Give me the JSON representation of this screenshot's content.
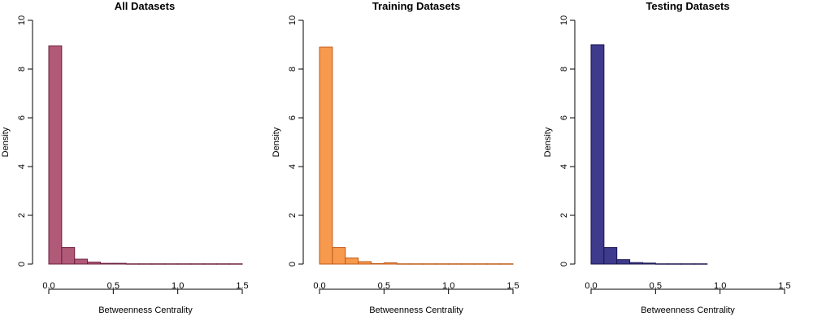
{
  "chart_data": [
    {
      "type": "bar",
      "title": "All Datasets",
      "xlabel": "Betweenness Centrality",
      "ylabel": "Density",
      "xlim": [
        0,
        1.5
      ],
      "ylim": [
        0,
        10
      ],
      "x_ticks": [
        "0.0",
        "0.5",
        "1.0",
        "1.5"
      ],
      "y_ticks": [
        "0",
        "2",
        "4",
        "6",
        "8",
        "10"
      ],
      "bin_width": 0.1,
      "bins_start": [
        0.0,
        0.1,
        0.2,
        0.3,
        0.4,
        0.5,
        0.6,
        0.7,
        0.8,
        0.9,
        1.0,
        1.1,
        1.2,
        1.3,
        1.4
      ],
      "values": [
        8.95,
        0.68,
        0.2,
        0.08,
        0.03,
        0.03,
        0.01,
        0.01,
        0.01,
        0.01,
        0.01,
        0.01,
        0.01,
        0.01,
        0.01
      ],
      "fill_color": "#b05a78",
      "edge_color": "#6e1f3f",
      "grid": false
    },
    {
      "type": "bar",
      "title": "Training Datasets",
      "xlabel": "Betweenness Centrality",
      "ylabel": "Density",
      "xlim": [
        0,
        1.5
      ],
      "ylim": [
        0,
        10
      ],
      "x_ticks": [
        "0.0",
        "0.5",
        "1.0",
        "1.5"
      ],
      "y_ticks": [
        "0",
        "2",
        "4",
        "6",
        "8",
        "10"
      ],
      "bin_width": 0.1,
      "bins_start": [
        0.0,
        0.1,
        0.2,
        0.3,
        0.4,
        0.5,
        0.6,
        0.7,
        0.8,
        0.9,
        1.0,
        1.1,
        1.2,
        1.3,
        1.4
      ],
      "values": [
        8.9,
        0.68,
        0.25,
        0.1,
        0.02,
        0.05,
        0.01,
        0.01,
        0.01,
        0.01,
        0.01,
        0.01,
        0.01,
        0.01,
        0.01
      ],
      "fill_color": "#f79a4e",
      "edge_color": "#c05a1a",
      "grid": false
    },
    {
      "type": "bar",
      "title": "Testing Datasets",
      "xlabel": "Betweenness Centrality",
      "ylabel": "Density",
      "xlim": [
        0,
        1.5
      ],
      "ylim": [
        0,
        10
      ],
      "x_ticks": [
        "0.0",
        "0.5",
        "1.0",
        "1.5"
      ],
      "y_ticks": [
        "0",
        "2",
        "4",
        "6",
        "8",
        "10"
      ],
      "bin_width": 0.1,
      "bins_start": [
        0.0,
        0.1,
        0.2,
        0.3,
        0.4,
        0.5,
        0.6,
        0.7,
        0.8
      ],
      "values": [
        9.0,
        0.68,
        0.18,
        0.06,
        0.04,
        0.01,
        0.01,
        0.01,
        0.01
      ],
      "fill_color": "#3e3a8c",
      "edge_color": "#1a1650",
      "grid": false
    }
  ]
}
